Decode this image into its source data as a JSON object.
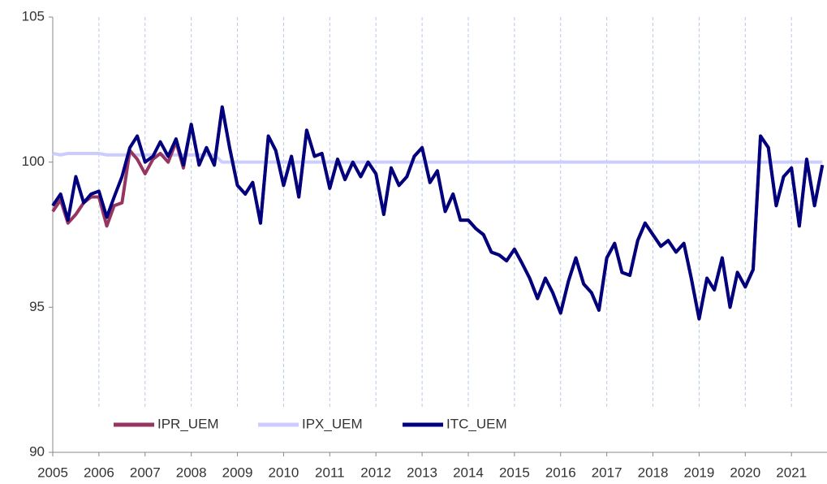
{
  "chart_data": {
    "type": "line",
    "x": [
      2005.0,
      2005.17,
      2005.33,
      2005.5,
      2005.67,
      2005.83,
      2006.0,
      2006.17,
      2006.33,
      2006.5,
      2006.67,
      2006.83,
      2007.0,
      2007.17,
      2007.33,
      2007.5,
      2007.67,
      2007.83,
      2008.0,
      2008.17,
      2008.33,
      2008.5,
      2008.67,
      2008.83,
      2009.0,
      2009.17,
      2009.33,
      2009.5,
      2009.67,
      2009.83,
      2010.0,
      2010.17,
      2010.33,
      2010.5,
      2010.67,
      2010.83,
      2011.0,
      2011.17,
      2011.33,
      2011.5,
      2011.67,
      2011.83,
      2012.0,
      2012.17,
      2012.33,
      2012.5,
      2012.67,
      2012.83,
      2013.0,
      2013.17,
      2013.33,
      2013.5,
      2013.67,
      2013.83,
      2014.0,
      2014.17,
      2014.33,
      2014.5,
      2014.67,
      2014.83,
      2015.0,
      2015.17,
      2015.33,
      2015.5,
      2015.67,
      2015.83,
      2016.0,
      2016.17,
      2016.33,
      2016.5,
      2016.67,
      2016.83,
      2017.0,
      2017.17,
      2017.33,
      2017.5,
      2017.67,
      2017.83,
      2018.0,
      2018.17,
      2018.33,
      2018.5,
      2018.67,
      2018.83,
      2019.0,
      2019.17,
      2019.33,
      2019.5,
      2019.67,
      2019.83,
      2020.0,
      2020.17,
      2020.33,
      2020.5,
      2020.67,
      2020.83,
      2021.0,
      2021.17,
      2021.33,
      2021.5,
      2021.67
    ],
    "series": [
      {
        "name": "IPX_UEM",
        "color": "#ccccff",
        "values": [
          100.3,
          100.25,
          100.3,
          100.3,
          100.3,
          100.3,
          100.3,
          100.25,
          100.25,
          100.25,
          100.25,
          100.25,
          100.25,
          100.25,
          100.25,
          100.25,
          100.25,
          100.25,
          100.25,
          100.25,
          100.25,
          100.25,
          100,
          100,
          100,
          100,
          100,
          100,
          100,
          100,
          100,
          100,
          100,
          100,
          100,
          100,
          100,
          100,
          100,
          100,
          100,
          100,
          100,
          100,
          100,
          100,
          100,
          100,
          100,
          100,
          100,
          100,
          100,
          100,
          100,
          100,
          100,
          100,
          100,
          100,
          100,
          100,
          100,
          100,
          100,
          100,
          100,
          100,
          100,
          100,
          100,
          100,
          100,
          100,
          100,
          100,
          100,
          100,
          100,
          100,
          100,
          100,
          100,
          100,
          100,
          100,
          100,
          100,
          100,
          100,
          100,
          100,
          100,
          100,
          100,
          100,
          100,
          100,
          100,
          100,
          100
        ]
      },
      {
        "name": "IPR_UEM",
        "color": "#963560",
        "values": [
          98.3,
          98.7,
          97.9,
          98.2,
          98.6,
          98.8,
          98.8,
          97.8,
          98.5,
          98.6,
          100.4,
          100.1,
          99.6,
          100.1,
          100.3,
          100.0,
          100.7,
          99.8,
          101.3,
          99.9,
          100.5,
          99.9,
          101.9,
          100.5,
          99.2,
          98.9,
          99.3,
          97.9,
          100.9,
          100.4,
          99.2,
          100.2,
          98.8,
          101.1,
          100.2,
          100.3,
          99.1,
          100.1,
          99.4,
          100.0,
          99.5,
          100.0,
          99.6,
          98.2,
          99.8,
          99.2,
          99.5,
          100.2,
          100.5,
          99.3,
          99.7,
          98.3,
          98.9,
          98.0,
          98.0,
          97.7,
          97.5,
          96.9,
          96.8,
          96.6,
          97.0,
          96.5,
          96.0,
          95.3,
          96.0,
          95.5,
          94.8,
          95.9,
          96.7,
          95.8,
          95.5,
          94.9,
          96.7,
          97.2,
          96.2,
          96.1,
          97.3,
          97.9,
          97.5,
          97.1,
          97.3,
          96.9,
          97.2,
          96.0,
          94.6,
          96.0,
          95.6,
          96.7,
          95.0,
          96.2,
          95.7,
          96.3,
          100.9,
          100.5,
          98.5,
          99.5,
          99.8,
          97.8,
          100.1,
          98.5,
          99.9
        ]
      },
      {
        "name": "ITC_UEM",
        "color": "#00007f",
        "values": [
          98.5,
          98.9,
          98.0,
          99.5,
          98.6,
          98.9,
          99.0,
          98.1,
          98.8,
          99.5,
          100.5,
          100.9,
          100.0,
          100.2,
          100.7,
          100.2,
          100.8,
          99.9,
          101.3,
          99.9,
          100.5,
          99.9,
          101.9,
          100.5,
          99.2,
          98.9,
          99.3,
          97.9,
          100.9,
          100.4,
          99.2,
          100.2,
          98.8,
          101.1,
          100.2,
          100.3,
          99.1,
          100.1,
          99.4,
          100.0,
          99.5,
          100.0,
          99.6,
          98.2,
          99.8,
          99.2,
          99.5,
          100.2,
          100.5,
          99.3,
          99.7,
          98.3,
          98.9,
          98.0,
          98.0,
          97.7,
          97.5,
          96.9,
          96.8,
          96.6,
          97.0,
          96.5,
          96.0,
          95.3,
          96.0,
          95.5,
          94.8,
          95.9,
          96.7,
          95.8,
          95.5,
          94.9,
          96.7,
          97.2,
          96.2,
          96.1,
          97.3,
          97.9,
          97.5,
          97.1,
          97.3,
          96.9,
          97.2,
          96.0,
          94.6,
          96.0,
          95.6,
          96.7,
          95.0,
          96.2,
          95.7,
          96.3,
          100.9,
          100.5,
          98.5,
          99.5,
          99.8,
          97.8,
          100.1,
          98.5,
          99.9
        ]
      }
    ],
    "legend_order": [
      "IPR_UEM",
      "IPX_UEM",
      "ITC_UEM"
    ],
    "xlim": [
      2005,
      2021.77
    ],
    "xticks": [
      2005,
      2006,
      2007,
      2008,
      2009,
      2010,
      2011,
      2012,
      2013,
      2014,
      2015,
      2016,
      2017,
      2018,
      2019,
      2020,
      2021
    ],
    "ylim": [
      90,
      105
    ],
    "yticks": [
      90,
      95,
      100,
      105
    ],
    "grid": true
  }
}
